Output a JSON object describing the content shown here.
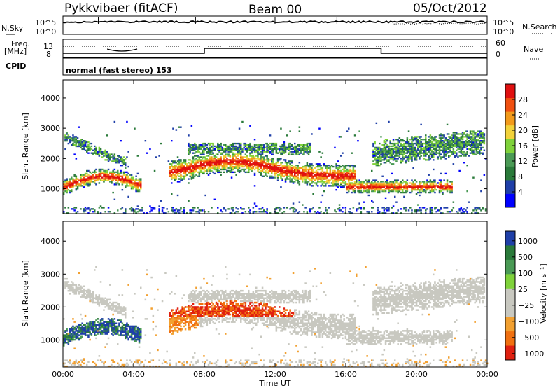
{
  "header": {
    "station": "Pykkvibaer (fitACF)",
    "beam": "Beam 00",
    "date": "05/Oct/2012"
  },
  "panels": {
    "nsky": {
      "left_label": "N.Sky",
      "right_label": "N.Search",
      "left_ticks": [
        "10^5",
        "10^0"
      ],
      "right_ticks": [
        "10^5",
        "10^0"
      ]
    },
    "freq": {
      "left_label_1": "Freq.",
      "left_label_2": "[MHz]",
      "left_ticks": [
        "13",
        "8"
      ],
      "right_label": "Nave",
      "right_ticks": [
        "60",
        "0"
      ]
    },
    "cpid": {
      "label": "CPID",
      "text": "normal (fast stereo) 153"
    }
  },
  "chart_data": [
    {
      "type": "heatmap",
      "name": "power",
      "ylabel": "Slant Range [km]",
      "xlabel": "",
      "yticks": [
        1000,
        2000,
        3000,
        4000
      ],
      "ylim": [
        180,
        4600
      ],
      "xlim": [
        0,
        24
      ],
      "colorbar": {
        "label": "Power [dB]",
        "ticks": [
          "4",
          "8",
          "12",
          "16",
          "20",
          "24",
          "28"
        ],
        "colors": [
          "#0000ff",
          "#1f3fa8",
          "#2a7a3a",
          "#4a9a55",
          "#7fd23a",
          "#f2d23a",
          "#f29a1a",
          "#f05010",
          "#e01010"
        ]
      }
    },
    {
      "type": "heatmap",
      "name": "velocity",
      "ylabel": "Slant Range [km]",
      "xlabel": "Time UT",
      "yticks": [
        1000,
        2000,
        3000,
        4000
      ],
      "xticks": [
        "00:00",
        "04:00",
        "08:00",
        "12:00",
        "16:00",
        "20:00",
        "00:00"
      ],
      "ylim": [
        180,
        4600
      ],
      "xlim": [
        0,
        24
      ],
      "colorbar": {
        "label": "Velocity [m s⁻¹]",
        "ticks": [
          "1000",
          "500",
          "100",
          "25",
          "−25",
          "−100",
          "−500",
          "−1000"
        ],
        "colors": [
          "#1f3fa8",
          "#2a7a3a",
          "#4a9a55",
          "#7fd23a",
          "#c8c8c0",
          "#c8c8c0",
          "#f2a030",
          "#f07010",
          "#e02010"
        ]
      }
    }
  ]
}
